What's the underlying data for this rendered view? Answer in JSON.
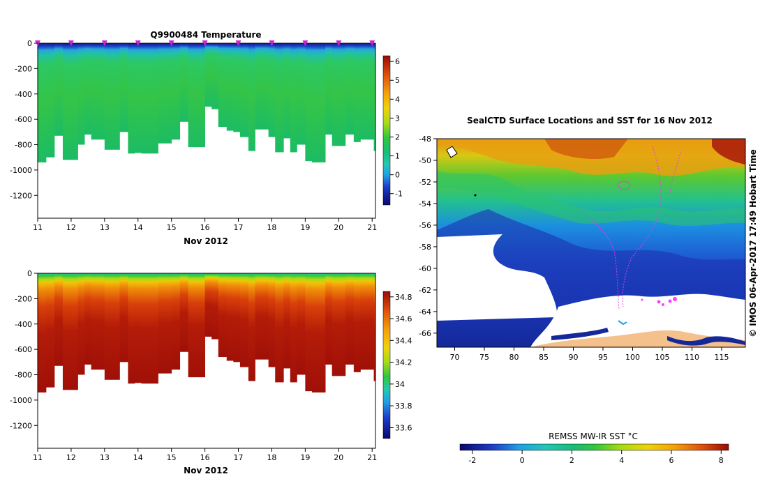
{
  "chart_data": [
    {
      "type": "heatmap",
      "title": "Q9900484  Temperature",
      "xlabel": "Nov 2012",
      "ylabel": "",
      "x_ticks": [
        "11",
        "12",
        "13",
        "14",
        "15",
        "16",
        "17",
        "18",
        "19",
        "20",
        "21"
      ],
      "x_range": [
        11,
        21.1
      ],
      "y_ticks": [
        "0",
        "-200",
        "-400",
        "-600",
        "-800",
        "-1000",
        "-1200"
      ],
      "y_range": [
        -1380,
        0
      ],
      "profile_days": [
        11.0,
        11.25,
        11.5,
        11.75,
        12.0,
        12.2,
        12.4,
        12.6,
        12.8,
        13.0,
        13.2,
        13.45,
        13.7,
        13.9,
        14.1,
        14.35,
        14.6,
        14.8,
        15.0,
        15.25,
        15.5,
        15.75,
        16.0,
        16.2,
        16.4,
        16.65,
        16.85,
        17.05,
        17.3,
        17.5,
        17.7,
        17.9,
        18.1,
        18.35,
        18.55,
        18.75,
        19.0,
        19.2,
        19.4,
        19.6,
        19.8,
        20.0,
        20.2,
        20.45,
        20.65,
        20.85,
        21.05
      ],
      "profile_max_depth": [
        940,
        900,
        730,
        920,
        920,
        800,
        720,
        760,
        760,
        840,
        840,
        700,
        870,
        865,
        870,
        870,
        790,
        790,
        760,
        620,
        820,
        820,
        500,
        520,
        660,
        690,
        700,
        740,
        850,
        680,
        680,
        740,
        860,
        750,
        860,
        800,
        930,
        940,
        940,
        720,
        810,
        810,
        720,
        780,
        760,
        760,
        850
      ],
      "surface_markers": [
        11,
        12,
        13,
        14,
        15,
        16,
        17,
        18,
        19,
        20,
        21
      ],
      "colorbar": {
        "ticks": [
          "6",
          "5",
          "4",
          "3",
          "2",
          "1",
          "0",
          "-1"
        ],
        "range": [
          -1.6,
          6.3
        ]
      }
    },
    {
      "type": "heatmap",
      "title": "",
      "xlabel": "Nov 2012",
      "ylabel": "",
      "x_ticks": [
        "11",
        "12",
        "13",
        "14",
        "15",
        "16",
        "17",
        "18",
        "19",
        "20",
        "21"
      ],
      "x_range": [
        11,
        21.1
      ],
      "y_ticks": [
        "0",
        "-200",
        "-400",
        "-600",
        "-800",
        "-1000",
        "-1200"
      ],
      "y_range": [
        -1380,
        0
      ],
      "colorbar": {
        "ticks": [
          "34.8",
          "34.6",
          "34.4",
          "34.2",
          "34",
          "33.8",
          "33.6"
        ],
        "range": [
          33.5,
          34.85
        ]
      }
    },
    {
      "type": "heatmap",
      "title": "SealCTD Surface Locations and SST for 16 Nov 2012",
      "x_ticks": [
        "70",
        "75",
        "80",
        "85",
        "90",
        "95",
        "100",
        "105",
        "110",
        "115"
      ],
      "x_range": [
        67,
        119
      ],
      "y_ticks": [
        "-48",
        "-50",
        "-52",
        "-54",
        "-56",
        "-58",
        "-60",
        "-62",
        "-64",
        "-66"
      ],
      "y_range": [
        -67.3,
        -48
      ],
      "side_label": "© IMOS 06-Apr-2017 17:49 Hobart Time",
      "colorbar": {
        "label": "REMSS MW-IR SST °C",
        "ticks": [
          "-2",
          "0",
          "2",
          "4",
          "6",
          "8"
        ],
        "range": [
          -2.5,
          8.3
        ]
      }
    }
  ]
}
